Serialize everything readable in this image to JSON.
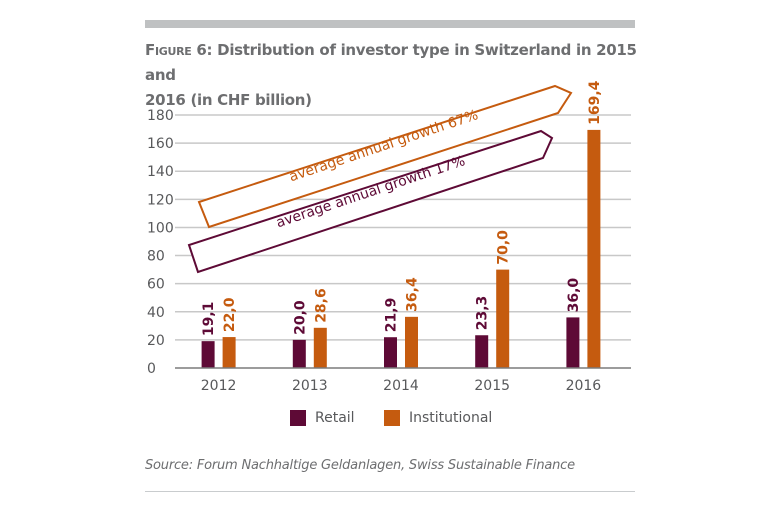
{
  "header": {
    "figure_label": "Figure 6:",
    "title_line1": " Distribution of investor type in Switzerland in 2015 and",
    "title_line2": "2016 (in CHF billion)"
  },
  "colors": {
    "retail": "#5e0a36",
    "institutional": "#c55b0f",
    "grid": "#c8c8c8",
    "axis": "#7b7b7b",
    "tick_text": "#58595b"
  },
  "chart_data": {
    "type": "bar",
    "title": "Figure 6: Distribution of investor type in Switzerland in 2015 and 2016 (in CHF billion)",
    "xlabel": "",
    "ylabel": "",
    "ylim": [
      0,
      180
    ],
    "yticks": [
      0,
      20,
      40,
      60,
      80,
      100,
      120,
      140,
      160,
      180
    ],
    "ytick_labels": [
      "0",
      "20",
      "40",
      "60",
      "80",
      "100",
      "120",
      "140",
      "160",
      "180"
    ],
    "grid": true,
    "categories": [
      "2012",
      "2013",
      "2014",
      "2015",
      "2016"
    ],
    "series": [
      {
        "name": "Retail",
        "color_key": "retail",
        "values": [
          19.1,
          20.0,
          21.9,
          23.3,
          36.0
        ],
        "labels": [
          "19,1",
          "20,0",
          "21,9",
          "23,3",
          "36,0"
        ]
      },
      {
        "name": "Institutional",
        "color_key": "institutional",
        "values": [
          22.0,
          28.6,
          36.4,
          70.0,
          169.4
        ],
        "labels": [
          "22,0",
          "28,6",
          "36,4",
          "70,0",
          "169,4"
        ]
      }
    ],
    "annotations": [
      {
        "text": "average annual growth 67%",
        "series": "Institutional",
        "shape": "arrow"
      },
      {
        "text": "average annual growth 17%",
        "series": "Retail",
        "shape": "arrow"
      }
    ],
    "legend": {
      "position": "bottom-center",
      "entries": [
        "Retail",
        "Institutional"
      ]
    }
  },
  "footer": {
    "source": "Source: Forum Nachhaltige Geldanlagen, Swiss Sustainable Finance"
  }
}
